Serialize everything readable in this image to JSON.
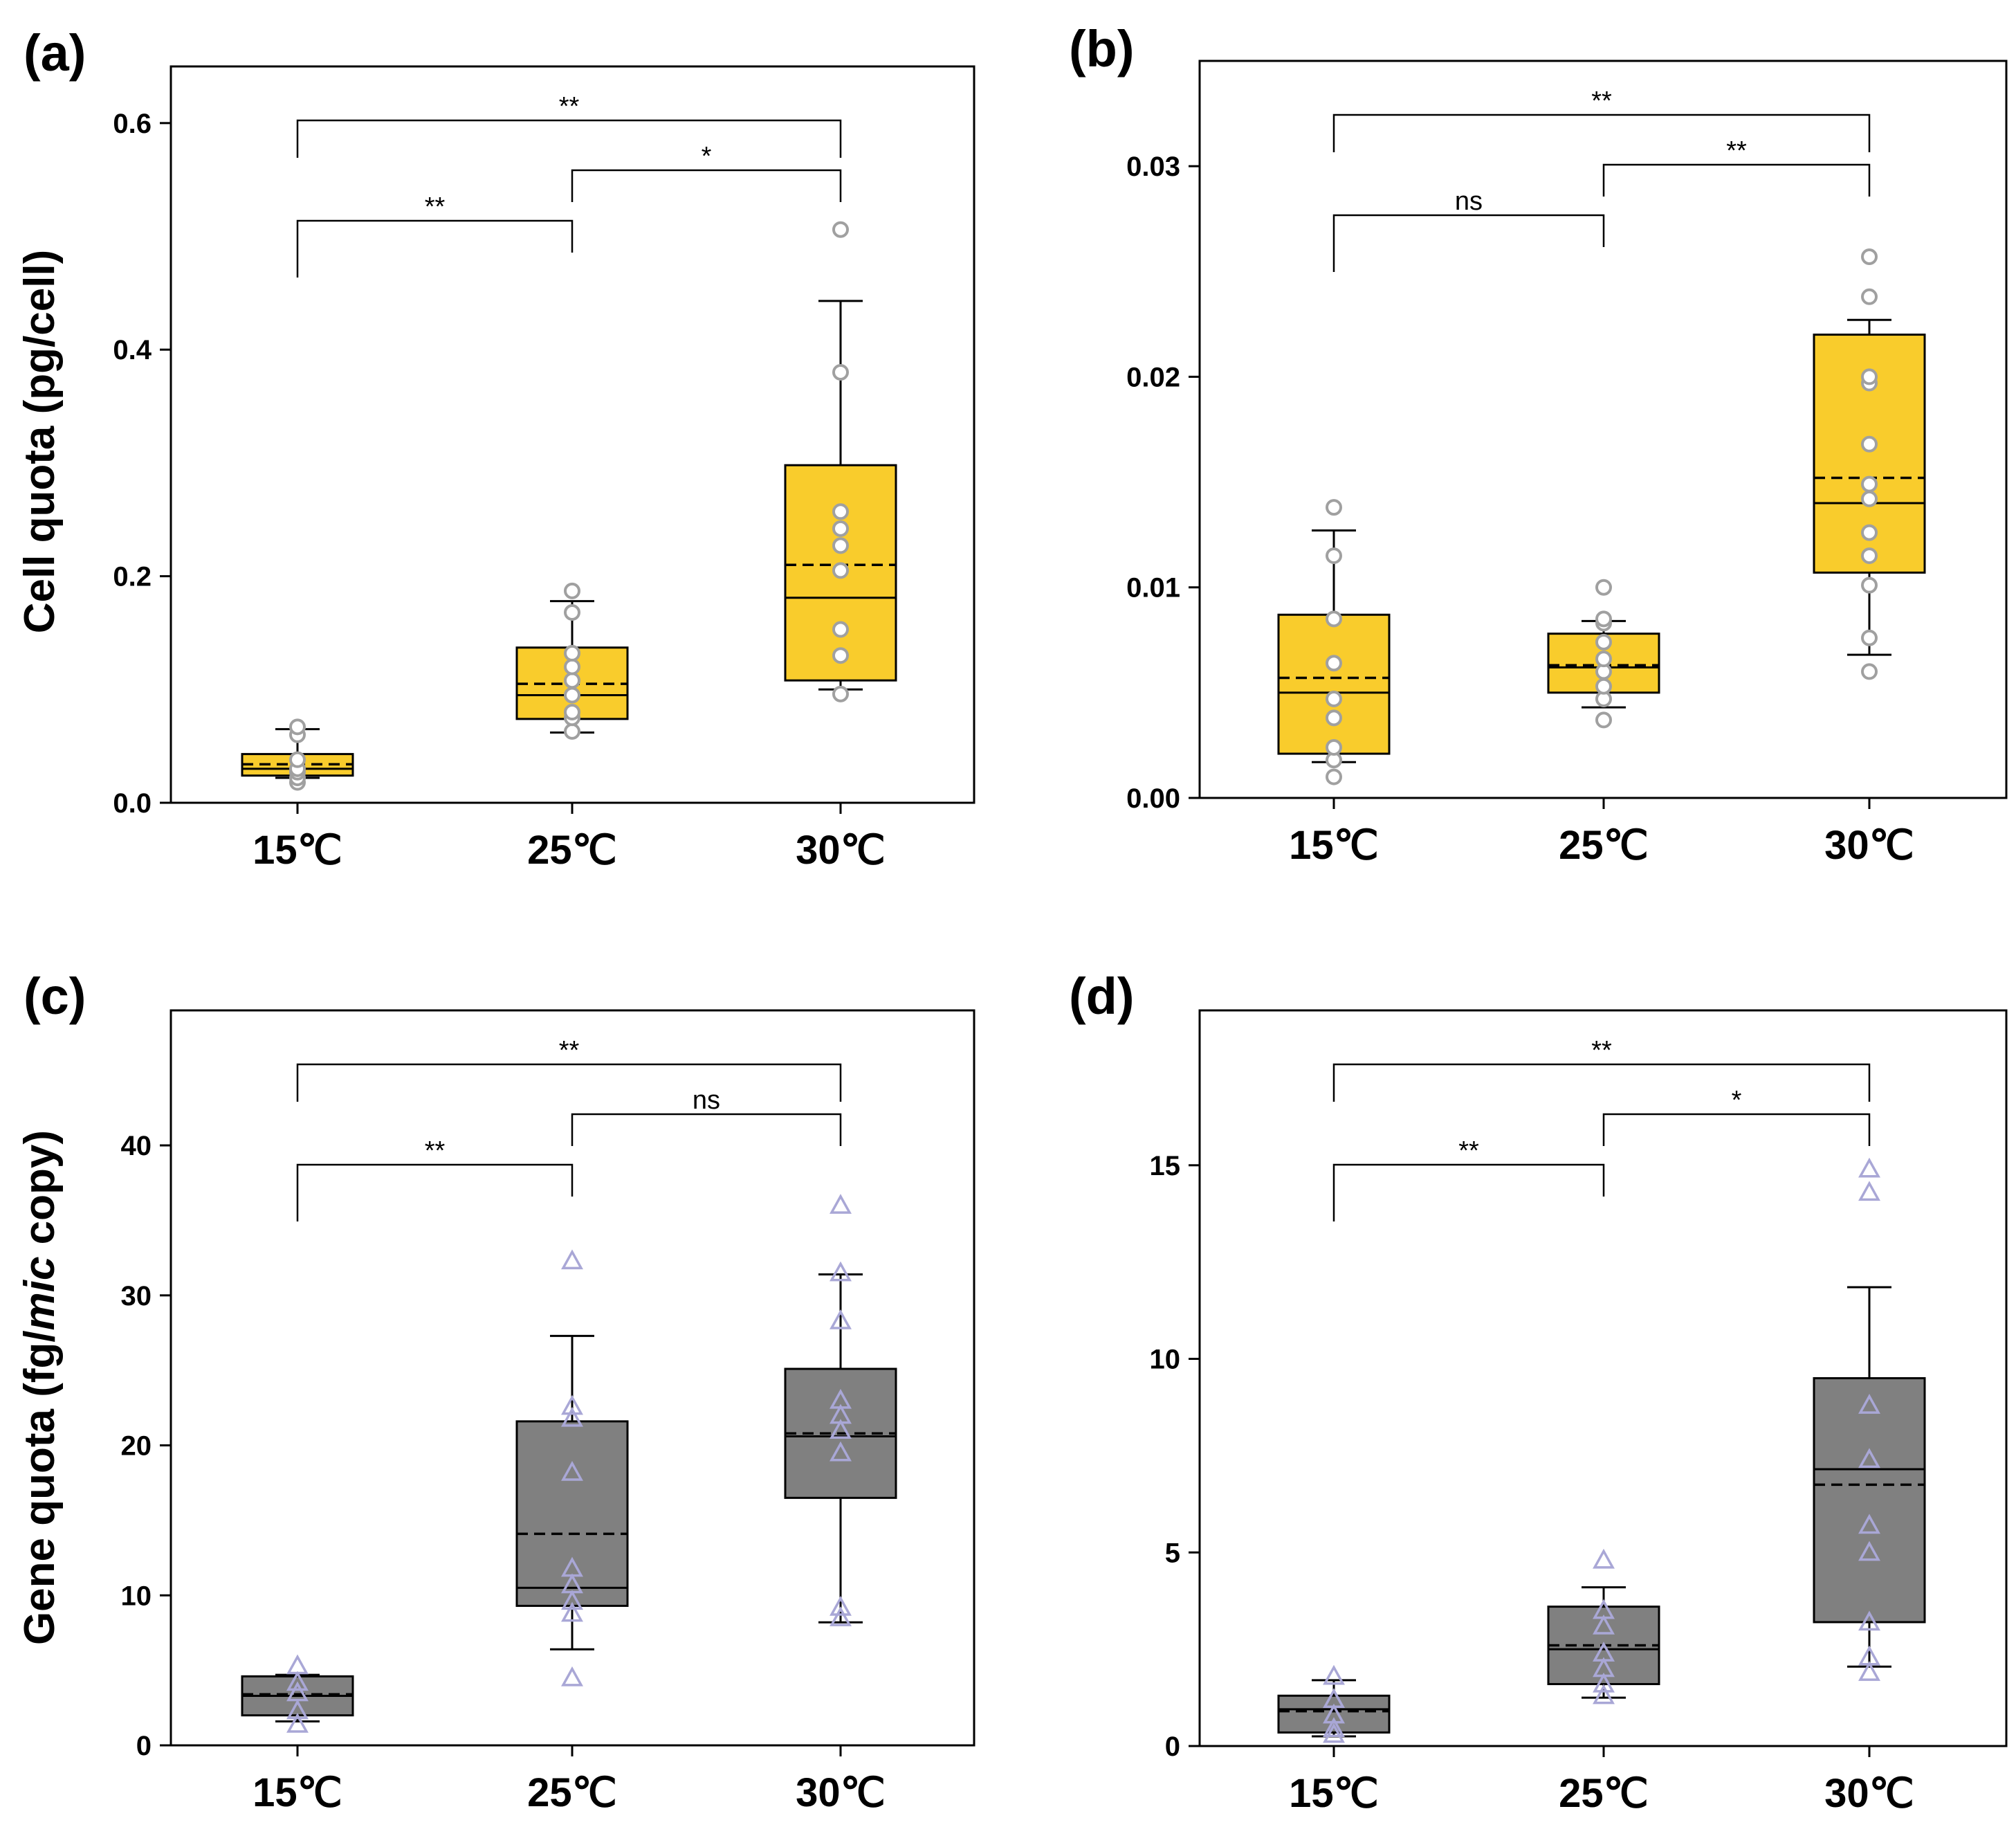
{
  "colors": {
    "box_fill_top": "#F9CC2C",
    "box_fill_bottom": "#808080",
    "circle_marker": "#A0A0A0",
    "triangle_marker": "#A9A7D6",
    "axis": "#000000"
  },
  "y_label_top": "Cell quota (pg/cell)",
  "y_label_bottom": {
    "prefix": "Gene quota (fg/",
    "italic": "mic",
    "suffix": " copy)"
  },
  "chart_data": [
    {
      "panel": "(a)",
      "type": "box",
      "marker": "circle",
      "categories": [
        "15℃",
        "25℃",
        "30℃"
      ],
      "ylim": [
        0,
        0.65
      ],
      "yticks": [
        "0.0",
        "0.2",
        "0.4",
        "0.6"
      ],
      "ytick_values": [
        0,
        0.2,
        0.4,
        0.6
      ],
      "ylabel": "Cell quota (pg/cell)",
      "boxes": [
        {
          "q1": 0.024,
          "median": 0.03,
          "mean": 0.034,
          "q3": 0.043,
          "whisker_low": 0.022,
          "whisker_high": 0.065,
          "points": [
            0.018,
            0.022,
            0.027,
            0.03,
            0.038,
            0.06,
            0.067
          ]
        },
        {
          "q1": 0.074,
          "median": 0.095,
          "mean": 0.105,
          "q3": 0.137,
          "whisker_low": 0.062,
          "whisker_high": 0.178,
          "points": [
            0.063,
            0.075,
            0.08,
            0.095,
            0.108,
            0.12,
            0.132,
            0.168,
            0.187
          ]
        },
        {
          "q1": 0.108,
          "median": 0.181,
          "mean": 0.21,
          "q3": 0.298,
          "whisker_low": 0.1,
          "whisker_high": 0.443,
          "points": [
            0.096,
            0.13,
            0.153,
            0.205,
            0.227,
            0.242,
            0.257,
            0.38,
            0.506
          ]
        }
      ],
      "comparisons": [
        {
          "from": 0,
          "to": 2,
          "label": "**"
        },
        {
          "from": 1,
          "to": 2,
          "label": "*"
        },
        {
          "from": 0,
          "to": 1,
          "label": "**"
        }
      ]
    },
    {
      "panel": "(b)",
      "type": "box",
      "marker": "circle",
      "categories": [
        "15℃",
        "25℃",
        "30℃"
      ],
      "ylim": [
        0,
        0.035
      ],
      "yticks": [
        "0.00",
        "0.01",
        "0.02",
        "0.03"
      ],
      "ytick_values": [
        0,
        0.01,
        0.02,
        0.03
      ],
      "ylabel": "",
      "boxes": [
        {
          "q1": 0.0021,
          "median": 0.005,
          "mean": 0.0057,
          "q3": 0.0087,
          "whisker_low": 0.0017,
          "whisker_high": 0.0127,
          "points": [
            0.001,
            0.0018,
            0.0024,
            0.0038,
            0.0047,
            0.0064,
            0.0085,
            0.0115,
            0.0138
          ]
        },
        {
          "q1": 0.005,
          "median": 0.0062,
          "mean": 0.0063,
          "q3": 0.0078,
          "whisker_low": 0.0043,
          "whisker_high": 0.0084,
          "points": [
            0.0037,
            0.0047,
            0.0053,
            0.006,
            0.0066,
            0.0074,
            0.0083,
            0.0085,
            0.01
          ]
        },
        {
          "q1": 0.0107,
          "median": 0.014,
          "mean": 0.0152,
          "q3": 0.022,
          "whisker_low": 0.0068,
          "whisker_high": 0.0227,
          "points": [
            0.006,
            0.0076,
            0.0101,
            0.0115,
            0.0126,
            0.0142,
            0.0149,
            0.0168,
            0.0197,
            0.02,
            0.0238,
            0.0257
          ]
        }
      ],
      "comparisons": [
        {
          "from": 0,
          "to": 2,
          "label": "**"
        },
        {
          "from": 1,
          "to": 2,
          "label": "**"
        },
        {
          "from": 0,
          "to": 1,
          "label": "ns"
        }
      ]
    },
    {
      "panel": "(c)",
      "type": "box",
      "marker": "triangle",
      "categories": [
        "15℃",
        "25℃",
        "30℃"
      ],
      "ylim": [
        0,
        49
      ],
      "yticks": [
        "0",
        "10",
        "20",
        "30",
        "40"
      ],
      "ytick_values": [
        0,
        10,
        20,
        30,
        40
      ],
      "ylabel": "Gene quota (fg/mic copy)",
      "boxes": [
        {
          "q1": 2.0,
          "median": 3.3,
          "mean": 3.4,
          "q3": 4.6,
          "whisker_low": 1.6,
          "whisker_high": 4.7,
          "points": [
            1.4,
            2.3,
            3.5,
            4.2,
            5.3
          ]
        },
        {
          "q1": 9.3,
          "median": 10.5,
          "mean": 14.1,
          "q3": 21.6,
          "whisker_low": 6.4,
          "whisker_high": 27.3,
          "points": [
            4.5,
            8.8,
            9.6,
            10.7,
            11.8,
            18.2,
            21.8,
            22.6,
            32.3
          ]
        },
        {
          "q1": 16.5,
          "median": 20.6,
          "mean": 20.8,
          "q3": 25.1,
          "whisker_low": 8.2,
          "whisker_high": 31.4,
          "points": [
            8.5,
            9.2,
            19.5,
            21.0,
            22.0,
            23.0,
            28.3,
            31.5,
            36.0
          ]
        }
      ],
      "comparisons": [
        {
          "from": 0,
          "to": 2,
          "label": "**"
        },
        {
          "from": 1,
          "to": 2,
          "label": "ns"
        },
        {
          "from": 0,
          "to": 1,
          "label": "**"
        }
      ]
    },
    {
      "panel": "(d)",
      "type": "box",
      "marker": "triangle",
      "categories": [
        "15℃",
        "25℃",
        "30℃"
      ],
      "ylim": [
        0,
        19
      ],
      "yticks": [
        "0",
        "5",
        "10",
        "15"
      ],
      "ytick_values": [
        0,
        5,
        10,
        15
      ],
      "ylabel": "",
      "boxes": [
        {
          "q1": 0.35,
          "median": 0.95,
          "mean": 0.9,
          "q3": 1.3,
          "whisker_low": 0.25,
          "whisker_high": 1.7,
          "points": [
            0.3,
            0.45,
            0.8,
            1.2,
            1.8
          ]
        },
        {
          "q1": 1.6,
          "median": 2.5,
          "mean": 2.6,
          "q3": 3.6,
          "whisker_low": 1.25,
          "whisker_high": 4.1,
          "points": [
            1.3,
            1.6,
            2.0,
            2.4,
            3.1,
            3.5,
            4.8
          ]
        },
        {
          "q1": 3.2,
          "median": 7.15,
          "mean": 6.75,
          "q3": 9.5,
          "whisker_low": 2.05,
          "whisker_high": 11.85,
          "points": [
            1.9,
            2.3,
            3.2,
            5.0,
            5.7,
            7.4,
            8.8,
            14.3,
            14.9
          ]
        }
      ],
      "comparisons": [
        {
          "from": 0,
          "to": 2,
          "label": "**"
        },
        {
          "from": 1,
          "to": 2,
          "label": "*"
        },
        {
          "from": 0,
          "to": 1,
          "label": "**"
        }
      ]
    }
  ]
}
